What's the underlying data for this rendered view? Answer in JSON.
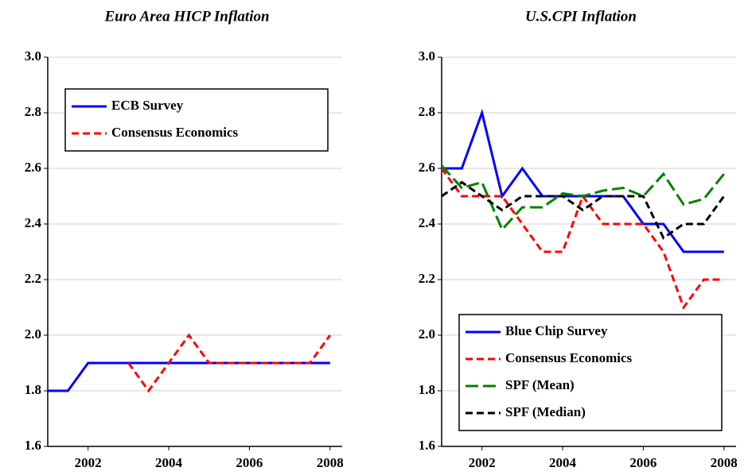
{
  "chart_data": [
    {
      "type": "line",
      "title": "Euro Area HICP Inflation",
      "x": [
        2001,
        2001.5,
        2002,
        2002.5,
        2003,
        2003.5,
        2004,
        2004.5,
        2005,
        2005.5,
        2006,
        2006.5,
        2007,
        2007.5,
        2008
      ],
      "series": [
        {
          "name": "ECB Survey",
          "color": "#0000ff",
          "style": "solid",
          "values": [
            1.8,
            1.8,
            1.9,
            1.9,
            1.9,
            1.9,
            1.9,
            1.9,
            1.9,
            1.9,
            1.9,
            1.9,
            1.9,
            1.9,
            1.9
          ]
        },
        {
          "name": "Consensus Economics",
          "color": "#ff0000",
          "style": "dashed",
          "values": [
            null,
            null,
            null,
            null,
            1.9,
            1.8,
            1.9,
            2.0,
            1.9,
            1.9,
            1.9,
            1.9,
            1.9,
            1.9,
            2.0
          ]
        }
      ],
      "xlim": [
        2001,
        2008.3
      ],
      "xticks": [
        2002,
        2004,
        2006,
        2008
      ],
      "ylim": [
        1.6,
        3.0
      ],
      "yticks": [
        1.6,
        1.8,
        {
          "value": 2.0,
          "label": "2.0"
        },
        2.2,
        2.4,
        2.6,
        2.8,
        {
          "value": 3.0,
          "label": "3.0"
        }
      ],
      "grid": true,
      "legend": "upper left"
    },
    {
      "type": "line",
      "title": "U.S.CPI Inflation",
      "x": [
        2001,
        2001.5,
        2002,
        2002.5,
        2003,
        2003.5,
        2004,
        2004.5,
        2005,
        2005.5,
        2006,
        2006.5,
        2007,
        2007.5,
        2008
      ],
      "series": [
        {
          "name": "Blue Chip Survey",
          "color": "#0000ff",
          "style": "solid",
          "values": [
            2.6,
            2.6,
            2.8,
            2.5,
            2.6,
            2.5,
            2.5,
            2.5,
            2.5,
            2.5,
            2.4,
            2.4,
            2.3,
            2.3,
            2.3
          ]
        },
        {
          "name": "Consensus Economics",
          "color": "#ff0000",
          "style": "dashed",
          "values": [
            2.6,
            2.5,
            2.5,
            2.5,
            2.4,
            2.3,
            2.3,
            2.5,
            2.4,
            2.4,
            2.4,
            2.3,
            2.1,
            2.2,
            2.2
          ]
        },
        {
          "name": "SPF (Mean)",
          "color": "#008000",
          "style": "longdash",
          "values": [
            2.61,
            2.53,
            2.55,
            2.38,
            2.46,
            2.46,
            2.51,
            2.5,
            2.52,
            2.53,
            2.5,
            2.58,
            2.47,
            2.49,
            2.58
          ]
        },
        {
          "name": "SPF (Median)",
          "color": "#000000",
          "style": "dashed",
          "values": [
            2.5,
            2.55,
            2.5,
            2.45,
            2.5,
            2.5,
            2.5,
            2.45,
            2.5,
            2.5,
            2.5,
            2.35,
            2.4,
            2.4,
            2.5
          ]
        }
      ],
      "xlim": [
        2001,
        2008.3
      ],
      "xticks": [
        2002,
        2004,
        2006,
        2008
      ],
      "ylim": [
        1.6,
        3.0
      ],
      "yticks": [
        1.6,
        1.8,
        {
          "value": 2.0,
          "label": "2.0"
        },
        2.2,
        2.4,
        2.6,
        2.8,
        {
          "value": 3.0,
          "label": "3.0"
        }
      ],
      "grid": true,
      "legend": "lower left"
    }
  ]
}
